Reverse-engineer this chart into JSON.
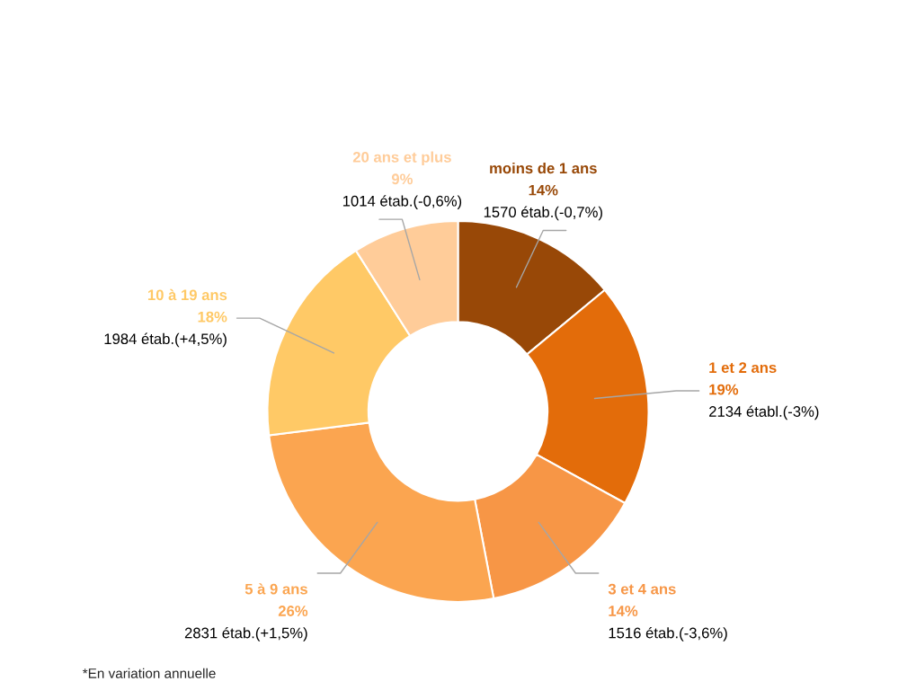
{
  "chart_data": {
    "type": "donut",
    "categories": [
      "moins de 1 ans",
      "1 et 2 ans",
      "3 et 4 ans",
      "5 à 9 ans",
      "10 à 19 ans",
      "20 ans et plus"
    ],
    "values": [
      14,
      19,
      14,
      26,
      18,
      9
    ],
    "colors": [
      "#984807",
      "#e36c0a",
      "#f79646",
      "#fba550",
      "#ffc966",
      "#ffcc99"
    ],
    "value_labels": [
      "14%",
      "19%",
      "14%",
      "26%",
      "18%",
      "9%"
    ],
    "annotations": [
      {
        "text": "1570 étab.(-0,7%)",
        "x": "moins de 1 ans"
      },
      {
        "text": "2134 établ.(-3%)",
        "x": "1 et 2 ans"
      },
      {
        "text": "1516 étab.(-3,6%)",
        "x": "3 et 4 ans"
      },
      {
        "text": "2831 étab.(+1,5%)",
        "x": "5 à 9 ans"
      },
      {
        "text": "1984 étab.(+4,5%)",
        "x": "10 à 19 ans"
      },
      {
        "text": "1014 étab.(-0,6%)",
        "x": "20 ans et plus"
      },
      "*En variation annuelle"
    ],
    "legend": false
  }
}
